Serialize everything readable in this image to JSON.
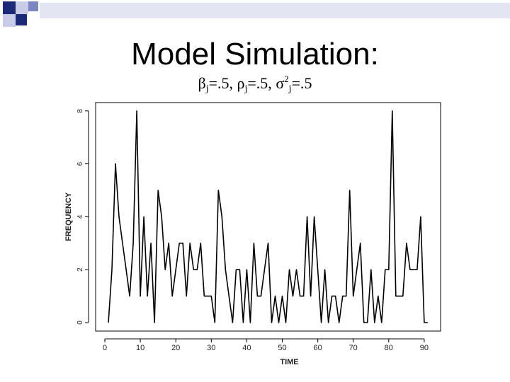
{
  "slide": {
    "title": "Model Simulation:",
    "subtitle_parts": {
      "beta": "β",
      "j1": "j",
      "eq1": "=.5, ",
      "rho": "ρ",
      "j2": "j",
      "eq2": "=.5, ",
      "sigma": "σ",
      "sq": "2",
      "j3": "j",
      "eq3": "=.5"
    }
  },
  "colors": {
    "line": "#000000",
    "deco_dark": "#1c2a78",
    "deco_mid": "#7d86c0",
    "deco_light": "#c8cce6"
  },
  "chart_data": {
    "type": "line",
    "xlabel": "TIME",
    "ylabel": "FREQUENCY",
    "xlim": [
      0,
      92
    ],
    "ylim": [
      0,
      8
    ],
    "xticks": [
      0,
      10,
      20,
      30,
      40,
      50,
      60,
      70,
      80,
      90
    ],
    "yticks": [
      0,
      2,
      4,
      6,
      8
    ],
    "grid": false,
    "x": [
      1,
      2,
      3,
      4,
      5,
      6,
      7,
      8,
      9,
      10,
      11,
      12,
      13,
      14,
      15,
      16,
      17,
      18,
      19,
      20,
      21,
      22,
      23,
      24,
      25,
      26,
      27,
      28,
      29,
      30,
      31,
      32,
      33,
      34,
      35,
      36,
      37,
      38,
      39,
      40,
      41,
      42,
      43,
      44,
      45,
      46,
      47,
      48,
      49,
      50,
      51,
      52,
      53,
      54,
      55,
      56,
      57,
      58,
      59,
      60,
      61,
      62,
      63,
      64,
      65,
      66,
      67,
      68,
      69,
      70,
      71,
      72,
      73,
      74,
      75,
      76,
      77,
      78,
      79,
      80,
      81,
      82,
      83,
      84,
      85,
      86,
      87,
      88,
      89,
      90,
      91
    ],
    "values": [
      0,
      2,
      6,
      4,
      3,
      2,
      1,
      3,
      8,
      1,
      4,
      1,
      3,
      0,
      5,
      4,
      2,
      3,
      1,
      2,
      3,
      3,
      1,
      3,
      2,
      2,
      3,
      1,
      1,
      1,
      0,
      5,
      4,
      2,
      1,
      0,
      2,
      2,
      0,
      2,
      0,
      3,
      1,
      1,
      2,
      3,
      0,
      1,
      0,
      1,
      0,
      2,
      1,
      2,
      1,
      1,
      4,
      1,
      4,
      2,
      0,
      2,
      0,
      1,
      1,
      0,
      1,
      1,
      5,
      1,
      2,
      3,
      0,
      0,
      2,
      0,
      1,
      0,
      2,
      2,
      8,
      1,
      1,
      1,
      3,
      2,
      2,
      2,
      4,
      0,
      0
    ]
  }
}
